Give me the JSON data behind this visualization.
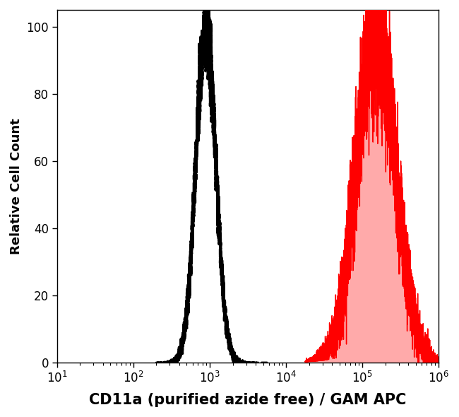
{
  "xlabel": "CD11a (purified azide free) / GAM APC",
  "ylabel": "Relative Cell Count",
  "xlim_log_min": 1,
  "xlim_log_max": 6,
  "ylim": [
    0,
    105
  ],
  "background_color": "#ffffff",
  "dashed_peak_log": 2.95,
  "dashed_sigma_log": 0.13,
  "dashed_range_min": 2.3,
  "dashed_range_max": 3.75,
  "red_peak_log": 5.18,
  "red_sigma_log": 0.25,
  "red_range_min": 4.25,
  "red_range_max": 6.0,
  "xlabel_fontsize": 15,
  "ylabel_fontsize": 13,
  "tick_fontsize": 12
}
